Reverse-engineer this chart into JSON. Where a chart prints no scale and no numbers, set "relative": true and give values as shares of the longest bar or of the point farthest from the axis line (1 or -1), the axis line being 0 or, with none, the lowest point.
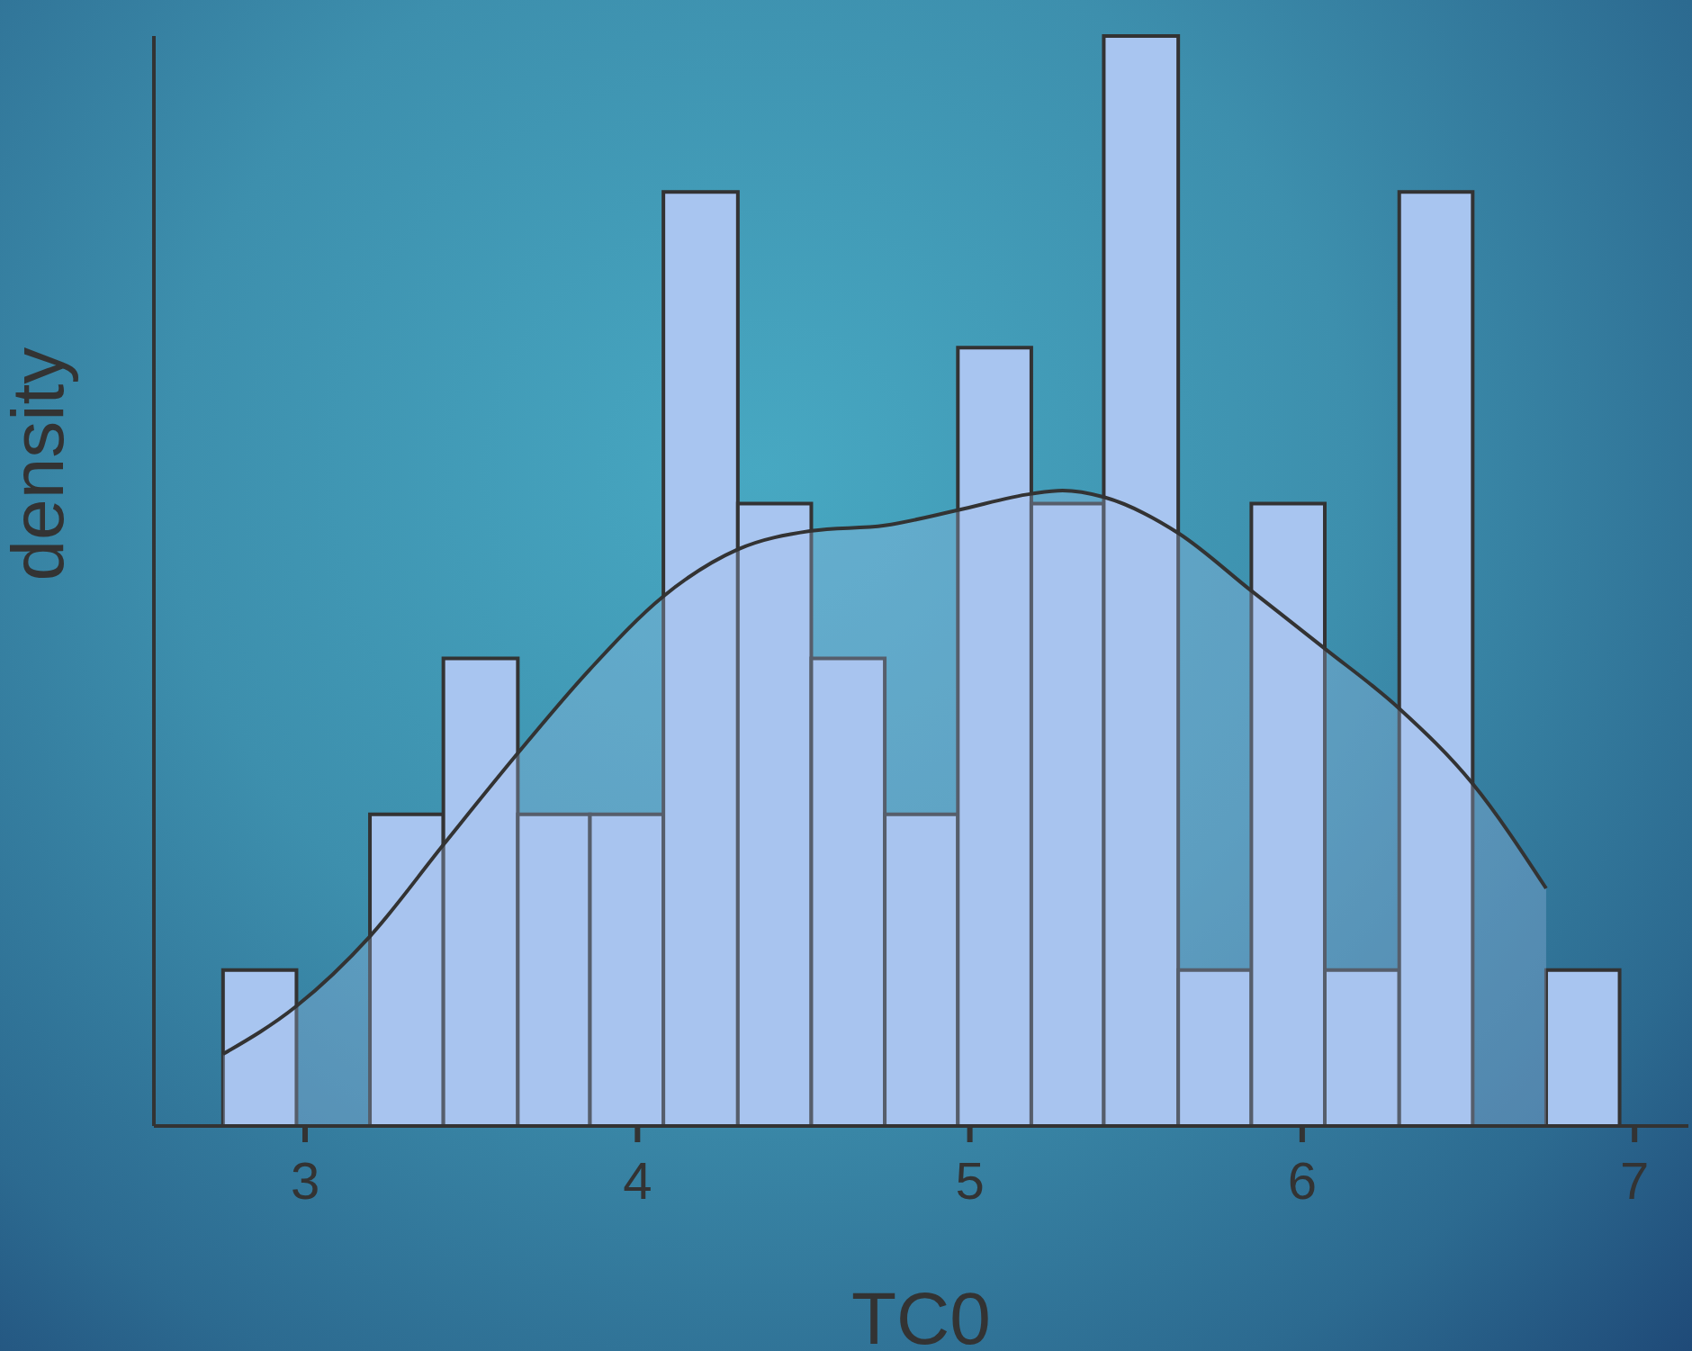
{
  "chart_data": {
    "type": "histogram",
    "xlabel": "TC0",
    "ylabel": "density",
    "relative": true,
    "bins": [
      2.753,
      2.974,
      3.195,
      3.416,
      3.64,
      3.857,
      4.078,
      4.302,
      4.523,
      4.744,
      4.964,
      5.185,
      5.403,
      5.627,
      5.847,
      6.068,
      6.292,
      6.513,
      6.734,
      6.955
    ],
    "values": [
      0.143,
      0,
      0.286,
      0.429,
      0.286,
      0.286,
      0.857,
      0.571,
      0.429,
      0.286,
      0.714,
      0.571,
      1,
      0.143,
      0.571,
      0.143,
      0.857,
      0,
      0.143
    ],
    "color": "#a8c5f0",
    "xlim": [
      2.545,
      7.162
    ],
    "xticks": [
      3,
      4,
      5,
      6,
      7
    ],
    "grid": false,
    "series": [
      {
        "type": "area",
        "color": "#333333",
        "x": [
          2.753,
          2.974,
          3.195,
          3.416,
          3.64,
          3.857,
          4.078,
          4.302,
          4.523,
          4.744,
          4.964,
          5.185,
          5.279,
          5.403,
          5.627,
          5.847,
          6.068,
          6.292,
          6.513,
          6.734
        ],
        "values": [
          0.066,
          0.11,
          0.174,
          0.258,
          0.342,
          0.419,
          0.486,
          0.529,
          0.546,
          0.551,
          0.565,
          0.58,
          0.583,
          0.577,
          0.544,
          0.491,
          0.438,
          0.383,
          0.314,
          0.218
        ]
      }
    ]
  }
}
